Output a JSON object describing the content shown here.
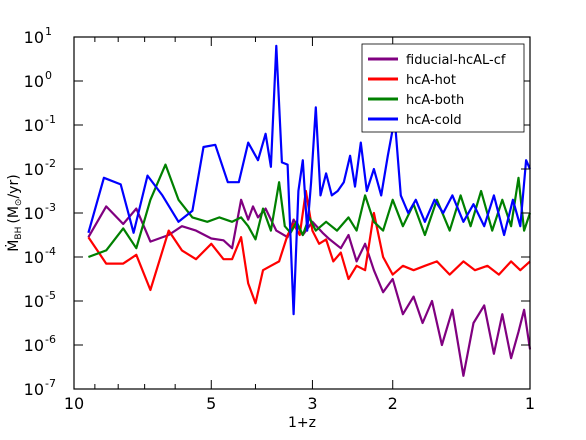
{
  "chart_data": {
    "type": "line",
    "xlabel": "1+z",
    "ylabel_main": "Ṁ",
    "ylabel_sub": "BH",
    "ylabel_paren_open": "(M",
    "ylabel_sun": "⊙",
    "ylabel_unit": "/yr)",
    "x_scale": "log",
    "x_reversed": true,
    "y_scale": "log",
    "xlim": [
      10,
      1
    ],
    "ylim": [
      1e-07,
      10
    ],
    "x_ticks": [
      {
        "value": 10,
        "label": "10"
      },
      {
        "value": 5,
        "label": "5"
      },
      {
        "value": 3,
        "label": "3"
      },
      {
        "value": 2,
        "label": "2"
      },
      {
        "value": 1,
        "label": "1"
      }
    ],
    "y_ticks": [
      {
        "exp": -7,
        "base": "10",
        "sup": "-7"
      },
      {
        "exp": -6,
        "base": "10",
        "sup": "-6"
      },
      {
        "exp": -5,
        "base": "10",
        "sup": "-5"
      },
      {
        "exp": -4,
        "base": "10",
        "sup": "-4"
      },
      {
        "exp": -3,
        "base": "10",
        "sup": "-3"
      },
      {
        "exp": -2,
        "base": "10",
        "sup": "-2"
      },
      {
        "exp": -1,
        "base": "10",
        "sup": "-1"
      },
      {
        "exp": 0,
        "base": "10",
        "sup": "0"
      },
      {
        "exp": 1,
        "base": "10",
        "sup": "1"
      }
    ],
    "legend_position": "top-right",
    "grid": false,
    "series": [
      {
        "name": "fiducial-hcAL-cf",
        "color": "#800080",
        "points": [
          [
            9.3,
            -3.55
          ],
          [
            8.5,
            -2.85
          ],
          [
            7.8,
            -3.25
          ],
          [
            7.3,
            -2.9
          ],
          [
            6.8,
            -3.65
          ],
          [
            6.2,
            -3.5
          ],
          [
            5.8,
            -3.3
          ],
          [
            5.4,
            -3.4
          ],
          [
            5.0,
            -3.58
          ],
          [
            4.7,
            -3.62
          ],
          [
            4.5,
            -3.8
          ],
          [
            4.3,
            -2.7
          ],
          [
            4.15,
            -3.15
          ],
          [
            4.05,
            -2.85
          ],
          [
            3.95,
            -3.1
          ],
          [
            3.8,
            -2.9
          ],
          [
            3.6,
            -3.4
          ],
          [
            3.4,
            -3.55
          ],
          [
            3.3,
            -3.15
          ],
          [
            3.15,
            -3.5
          ],
          [
            3.0,
            -3.2
          ],
          [
            2.85,
            -3.45
          ],
          [
            2.75,
            -3.6
          ],
          [
            2.6,
            -3.8
          ],
          [
            2.5,
            -3.5
          ],
          [
            2.4,
            -4.1
          ],
          [
            2.3,
            -3.7
          ],
          [
            2.2,
            -4.3
          ],
          [
            2.1,
            -4.8
          ],
          [
            2.0,
            -4.5
          ],
          [
            1.9,
            -5.3
          ],
          [
            1.8,
            -4.9
          ],
          [
            1.72,
            -5.5
          ],
          [
            1.64,
            -5.0
          ],
          [
            1.56,
            -6.0
          ],
          [
            1.48,
            -5.2
          ],
          [
            1.4,
            -6.7
          ],
          [
            1.33,
            -5.5
          ],
          [
            1.26,
            -5.1
          ],
          [
            1.2,
            -6.2
          ],
          [
            1.15,
            -5.3
          ],
          [
            1.1,
            -6.3
          ],
          [
            1.06,
            -5.7
          ],
          [
            1.03,
            -5.2
          ],
          [
            1.0,
            -6.1
          ]
        ]
      },
      {
        "name": "hcA-hot",
        "color": "#ff0000",
        "points": [
          [
            9.3,
            -3.55
          ],
          [
            8.5,
            -4.15
          ],
          [
            7.8,
            -4.15
          ],
          [
            7.3,
            -3.95
          ],
          [
            6.8,
            -4.75
          ],
          [
            6.2,
            -3.4
          ],
          [
            5.8,
            -3.85
          ],
          [
            5.4,
            -4.05
          ],
          [
            5.0,
            -3.7
          ],
          [
            4.7,
            -4.05
          ],
          [
            4.5,
            -4.05
          ],
          [
            4.3,
            -3.55
          ],
          [
            4.15,
            -4.6
          ],
          [
            4.0,
            -5.05
          ],
          [
            3.85,
            -4.3
          ],
          [
            3.7,
            -4.2
          ],
          [
            3.55,
            -4.1
          ],
          [
            3.4,
            -3.5
          ],
          [
            3.3,
            -3.25
          ],
          [
            3.2,
            -3.5
          ],
          [
            3.1,
            -2.5
          ],
          [
            3.0,
            -3.4
          ],
          [
            2.9,
            -3.7
          ],
          [
            2.8,
            -3.6
          ],
          [
            2.7,
            -4.1
          ],
          [
            2.6,
            -3.9
          ],
          [
            2.5,
            -4.5
          ],
          [
            2.4,
            -4.2
          ],
          [
            2.3,
            -4.3
          ],
          [
            2.2,
            -3.0
          ],
          [
            2.1,
            -4.0
          ],
          [
            2.0,
            -4.4
          ],
          [
            1.9,
            -4.2
          ],
          [
            1.8,
            -4.3
          ],
          [
            1.7,
            -4.2
          ],
          [
            1.6,
            -4.1
          ],
          [
            1.5,
            -4.4
          ],
          [
            1.4,
            -4.1
          ],
          [
            1.32,
            -4.3
          ],
          [
            1.24,
            -4.2
          ],
          [
            1.17,
            -4.4
          ],
          [
            1.1,
            -4.1
          ],
          [
            1.05,
            -4.3
          ],
          [
            1.0,
            -4.1
          ]
        ]
      },
      {
        "name": "hcA-both",
        "color": "#008000",
        "points": [
          [
            9.3,
            -4.0
          ],
          [
            8.5,
            -3.85
          ],
          [
            7.8,
            -3.35
          ],
          [
            7.3,
            -3.8
          ],
          [
            6.8,
            -2.7
          ],
          [
            6.3,
            -1.9
          ],
          [
            5.9,
            -2.7
          ],
          [
            5.5,
            -3.1
          ],
          [
            5.1,
            -3.2
          ],
          [
            4.8,
            -3.1
          ],
          [
            4.5,
            -3.2
          ],
          [
            4.3,
            -3.1
          ],
          [
            4.15,
            -3.3
          ],
          [
            4.0,
            -3.6
          ],
          [
            3.85,
            -2.9
          ],
          [
            3.7,
            -3.4
          ],
          [
            3.55,
            -2.3
          ],
          [
            3.45,
            -3.3
          ],
          [
            3.35,
            -3.45
          ],
          [
            3.25,
            -3.2
          ],
          [
            3.15,
            -3.5
          ],
          [
            3.05,
            -3.1
          ],
          [
            2.95,
            -3.4
          ],
          [
            2.8,
            -3.2
          ],
          [
            2.65,
            -3.4
          ],
          [
            2.5,
            -3.1
          ],
          [
            2.4,
            -3.4
          ],
          [
            2.3,
            -2.6
          ],
          [
            2.2,
            -3.2
          ],
          [
            2.1,
            -3.4
          ],
          [
            2.0,
            -2.7
          ],
          [
            1.9,
            -3.3
          ],
          [
            1.8,
            -2.8
          ],
          [
            1.7,
            -3.5
          ],
          [
            1.6,
            -2.7
          ],
          [
            1.5,
            -3.4
          ],
          [
            1.42,
            -2.6
          ],
          [
            1.35,
            -3.3
          ],
          [
            1.28,
            -2.5
          ],
          [
            1.21,
            -3.4
          ],
          [
            1.15,
            -2.7
          ],
          [
            1.1,
            -3.3
          ],
          [
            1.06,
            -2.2
          ],
          [
            1.03,
            -3.4
          ],
          [
            1.0,
            -3.0
          ]
        ]
      },
      {
        "name": "hcA-cold",
        "color": "#0000ff",
        "points": [
          [
            9.3,
            -3.45
          ],
          [
            8.6,
            -2.2
          ],
          [
            7.9,
            -2.35
          ],
          [
            7.4,
            -3.45
          ],
          [
            6.9,
            -2.15
          ],
          [
            6.4,
            -2.6
          ],
          [
            5.9,
            -3.2
          ],
          [
            5.5,
            -2.95
          ],
          [
            5.2,
            -1.5
          ],
          [
            4.9,
            -1.45
          ],
          [
            4.6,
            -2.3
          ],
          [
            4.35,
            -2.3
          ],
          [
            4.15,
            -1.4
          ],
          [
            3.95,
            -1.8
          ],
          [
            3.8,
            -1.2
          ],
          [
            3.7,
            -1.95
          ],
          [
            3.6,
            0.8
          ],
          [
            3.5,
            -1.85
          ],
          [
            3.4,
            -1.9
          ],
          [
            3.3,
            -5.3
          ],
          [
            3.22,
            -2.5
          ],
          [
            3.15,
            -1.8
          ],
          [
            3.08,
            -3.4
          ],
          [
            3.02,
            -2.3
          ],
          [
            2.95,
            -0.6
          ],
          [
            2.88,
            -2.6
          ],
          [
            2.8,
            -2.1
          ],
          [
            2.72,
            -2.6
          ],
          [
            2.64,
            -2.5
          ],
          [
            2.56,
            -2.3
          ],
          [
            2.48,
            -1.7
          ],
          [
            2.42,
            -2.4
          ],
          [
            2.35,
            -1.4
          ],
          [
            2.28,
            -2.5
          ],
          [
            2.2,
            -2.0
          ],
          [
            2.12,
            -2.6
          ],
          [
            2.05,
            -1.7
          ],
          [
            1.98,
            -0.85
          ],
          [
            1.92,
            -2.6
          ],
          [
            1.85,
            -3.0
          ],
          [
            1.78,
            -2.7
          ],
          [
            1.7,
            -3.2
          ],
          [
            1.62,
            -2.7
          ],
          [
            1.55,
            -3.0
          ],
          [
            1.48,
            -2.6
          ],
          [
            1.4,
            -3.2
          ],
          [
            1.33,
            -2.8
          ],
          [
            1.26,
            -3.3
          ],
          [
            1.2,
            -2.6
          ],
          [
            1.14,
            -3.5
          ],
          [
            1.09,
            -2.7
          ],
          [
            1.05,
            -3.3
          ],
          [
            1.02,
            -1.8
          ],
          [
            1.0,
            -2.0
          ]
        ]
      }
    ]
  }
}
